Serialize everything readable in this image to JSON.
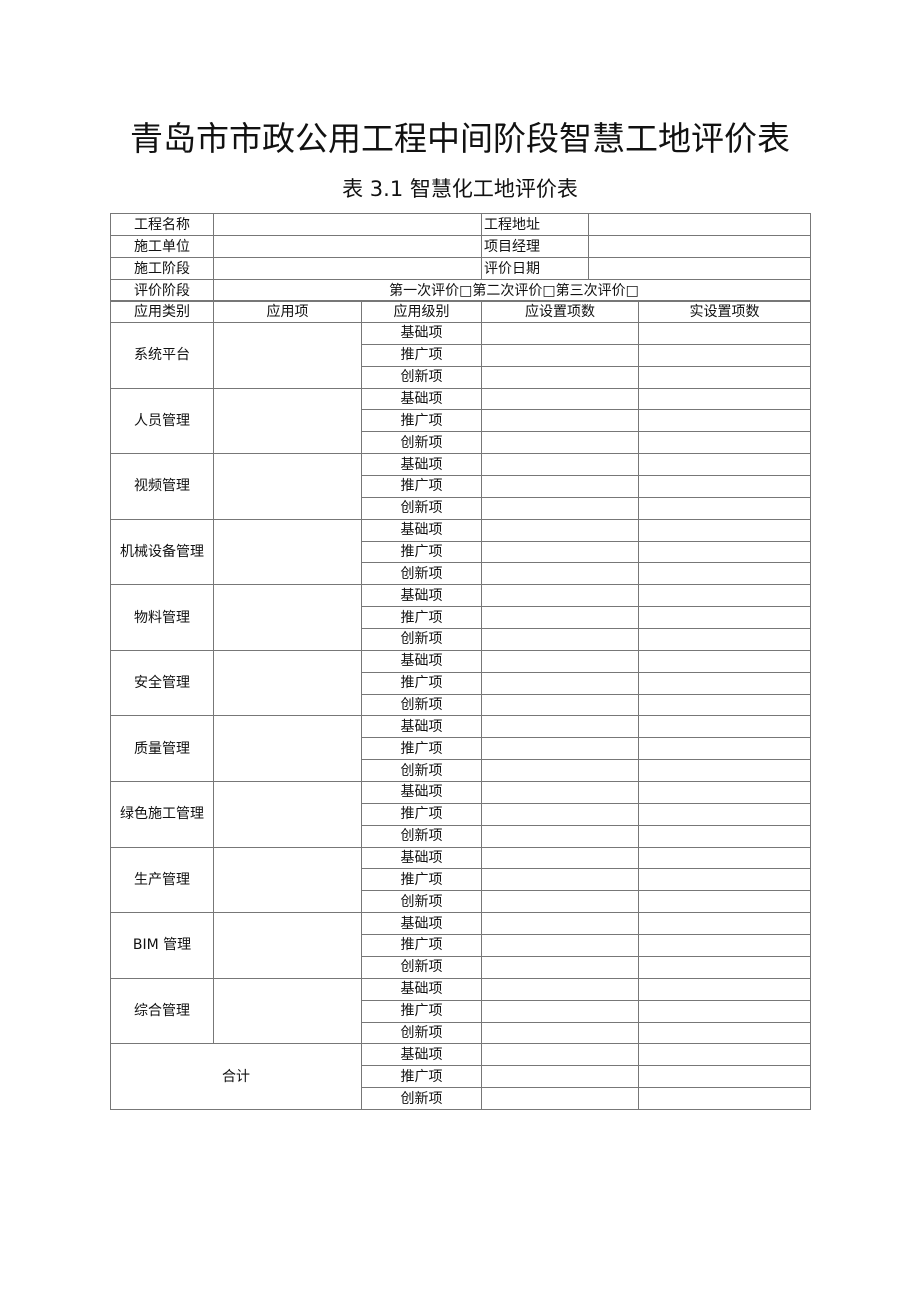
{
  "title": "青岛市市政公用工程中间阶段智慧工地评价表",
  "subtitle": "表 3.1 智慧化工地评价表",
  "info": {
    "project_name_label": "工程名称",
    "project_address_label": "工程地址",
    "contractor_label": "施工单位",
    "manager_label": "项目经理",
    "stage_label": "施工阶段",
    "eval_date_label": "评价日期",
    "eval_phase_label": "评价阶段",
    "eval_phase_options": "第一次评价□第二次评价□第三次评价□"
  },
  "headers": [
    "应用类别",
    "应用项",
    "应用级别",
    "应设置项数",
    "实设置项数"
  ],
  "levels": [
    "基础项",
    "推广项",
    "创新项"
  ],
  "categories": [
    "系统平台",
    "人员管理",
    "视频管理",
    "机械设备管理",
    "物料管理",
    "安全管理",
    "质量管理",
    "绿色施工管理",
    "生产管理",
    "BIM 管理",
    "综合管理"
  ],
  "total_label": "合计"
}
